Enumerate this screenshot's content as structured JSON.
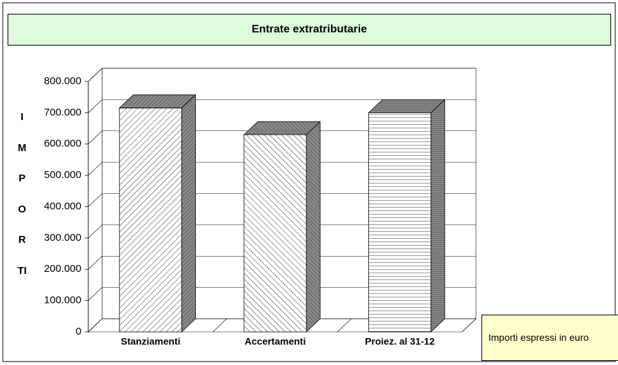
{
  "chart_data": {
    "type": "bar3d",
    "title": "Entrate extratributarie",
    "y_label": "IMPORTI",
    "note": "Importi espressi in euro",
    "categories": [
      "Stanziamenti",
      "Accertamenti",
      "Proiez. al 31-12"
    ],
    "values": [
      715000,
      630000,
      700000
    ],
    "color": "#000000",
    "ylim": [
      0,
      800000
    ],
    "yticks": [
      0,
      {
        "value": 100000,
        "label": "100.000"
      },
      {
        "value": 200000,
        "label": "200.000"
      },
      {
        "value": 300000,
        "label": "300.000"
      },
      {
        "value": 400000,
        "label": "400.000"
      },
      {
        "value": 500000,
        "label": "500.000"
      },
      {
        "value": 600000,
        "label": "600.000"
      },
      {
        "value": 700000,
        "label": "700.000"
      },
      {
        "value": 800000,
        "label": "800.000"
      }
    ],
    "grid": true
  }
}
